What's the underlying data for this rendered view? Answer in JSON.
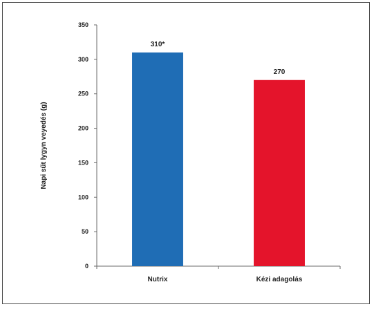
{
  "chart_data": {
    "type": "bar",
    "categories": [
      "Nutrix",
      "Kézi adagolás"
    ],
    "values": [
      310,
      270
    ],
    "data_labels": [
      "310*",
      "270"
    ],
    "colors": [
      "#1f6db5",
      "#e4142b"
    ],
    "ylabel": "Napi sűt lygyn veyedés (g)",
    "xlabel": "",
    "ylim": [
      0,
      350
    ],
    "yticks": [
      0,
      50,
      100,
      150,
      200,
      250,
      300,
      350
    ],
    "grid": false,
    "legend": "none"
  }
}
